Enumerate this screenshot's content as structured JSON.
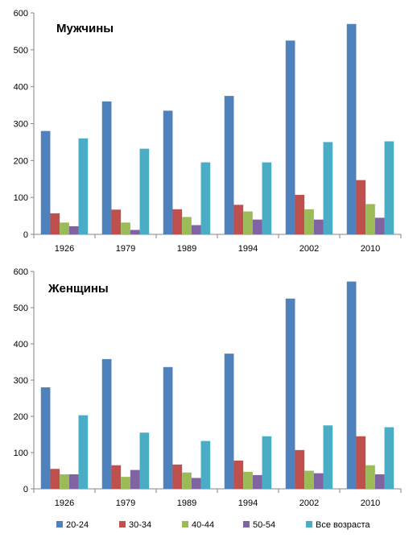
{
  "chart_data": [
    {
      "type": "bar",
      "title": "Мужчины",
      "categories": [
        "1926",
        "1979",
        "1989",
        "1994",
        "2002",
        "2010"
      ],
      "ylim": [
        0,
        600
      ],
      "yticks": [
        "0",
        "100",
        "200",
        "300",
        "400",
        "500",
        "600"
      ],
      "grid": false,
      "series": [
        {
          "name": "20-24",
          "color": "#4F81BD",
          "values": [
            280,
            360,
            335,
            375,
            525,
            570
          ]
        },
        {
          "name": "30-34",
          "color": "#C0504D",
          "values": [
            57,
            67,
            68,
            80,
            107,
            147
          ]
        },
        {
          "name": "40-44",
          "color": "#9BBB59",
          "values": [
            32,
            32,
            47,
            62,
            68,
            82
          ]
        },
        {
          "name": "50-54",
          "color": "#8064A2",
          "values": [
            22,
            12,
            25,
            40,
            40,
            45
          ]
        },
        {
          "name": "Все возраста",
          "color": "#4BACC6",
          "values": [
            260,
            232,
            195,
            195,
            250,
            252
          ]
        }
      ]
    },
    {
      "type": "bar",
      "title": "Женщины",
      "categories": [
        "1926",
        "1979",
        "1989",
        "1994",
        "2002",
        "2010"
      ],
      "ylim": [
        0,
        600
      ],
      "yticks": [
        "0",
        "100",
        "200",
        "300",
        "400",
        "500",
        "600"
      ],
      "grid": false,
      "series": [
        {
          "name": "20-24",
          "color": "#4F81BD",
          "values": [
            280,
            358,
            336,
            373,
            525,
            572
          ]
        },
        {
          "name": "30-34",
          "color": "#C0504D",
          "values": [
            55,
            65,
            67,
            78,
            107,
            145
          ]
        },
        {
          "name": "40-44",
          "color": "#9BBB59",
          "values": [
            40,
            33,
            45,
            47,
            50,
            65
          ]
        },
        {
          "name": "50-54",
          "color": "#8064A2",
          "values": [
            40,
            52,
            30,
            38,
            43,
            40
          ]
        },
        {
          "name": "Все возраста",
          "color": "#4BACC6",
          "values": [
            203,
            155,
            132,
            145,
            175,
            170
          ]
        }
      ]
    }
  ],
  "legend": {
    "placement": "bottom",
    "items": [
      {
        "label": "20-24",
        "color": "#4F81BD"
      },
      {
        "label": "30-34",
        "color": "#C0504D"
      },
      {
        "label": "40-44",
        "color": "#9BBB59"
      },
      {
        "label": "50-54",
        "color": "#8064A2"
      },
      {
        "label": "Все возраста",
        "color": "#4BACC6"
      }
    ]
  }
}
